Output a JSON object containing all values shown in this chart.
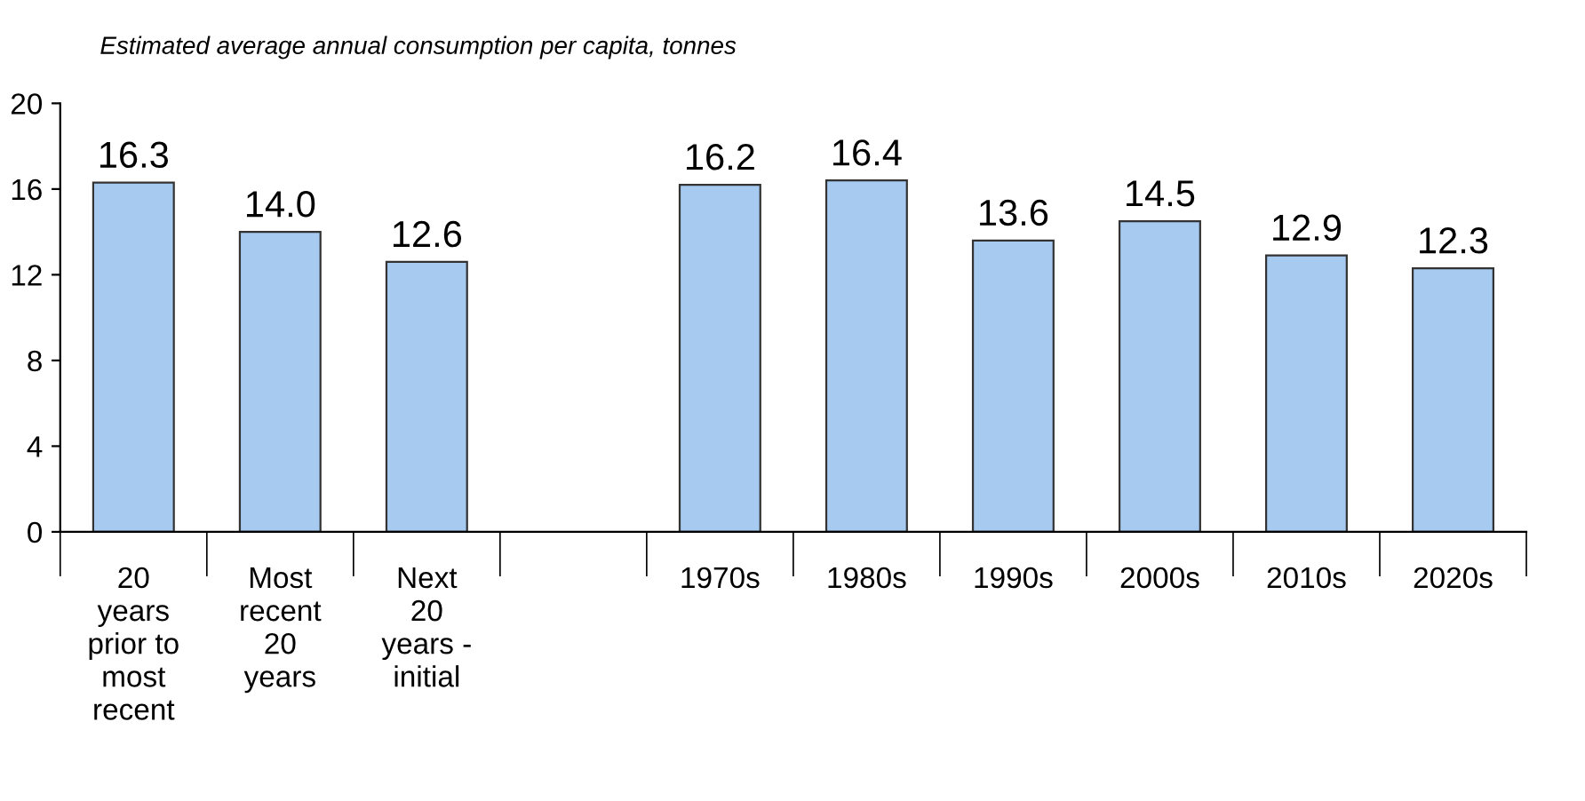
{
  "chart_data": {
    "type": "bar",
    "title": "Estimated average annual consumption per capita, tonnes",
    "categories": [
      "20\nyears\nprior to\nmost\nrecent",
      "Most\nrecent\n20\nyears",
      "Next\n20\nyears -\ninitial",
      null,
      "1970s",
      "1980s",
      "1990s",
      "2000s",
      "2010s",
      "2020s"
    ],
    "values": [
      16.3,
      14.0,
      12.6,
      null,
      16.2,
      16.4,
      13.6,
      14.5,
      12.9,
      12.3
    ],
    "value_labels": [
      "16.3",
      "14.0",
      "12.6",
      null,
      "16.2",
      "16.4",
      "13.6",
      "14.5",
      "12.9",
      "12.3"
    ],
    "color": "#a6caf0",
    "ylim": [
      0,
      20
    ],
    "yticks": [
      0,
      4,
      8,
      12,
      16,
      20
    ],
    "grid": false
  }
}
